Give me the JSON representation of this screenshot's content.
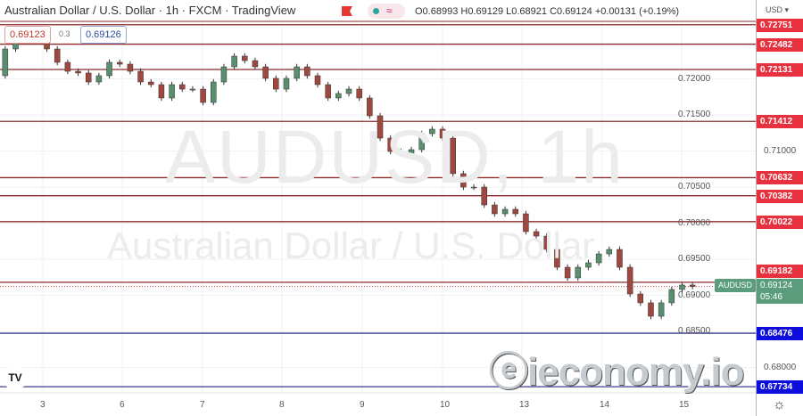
{
  "header": {
    "title": "Australian Dollar / U.S. Dollar · 1h · FXCM · TradingView",
    "ohlc": "O0.68993 H0.69129 L0.68921 C0.69124 +0.00131 (+0.19%)",
    "sell_price": "0.69123",
    "spread": "0.3",
    "buy_price": "0.69126",
    "flag_icon": "red-flag-icon",
    "status_icon": "market-open-dot"
  },
  "watermark": {
    "symbol": "AUDUSD, 1h",
    "name": "Australian Dollar / U.S. Dollar"
  },
  "axis": {
    "currency": "USD ▾"
  },
  "logo_text": "ieconomy.io",
  "current": {
    "symbol": "AUDUSD",
    "price": "0.69124",
    "countdown": "05:46"
  },
  "colors": {
    "up": "#26a69a",
    "down": "#ef5350",
    "candle_body_up": "#5a8f6e",
    "candle_body_down": "#a0473f",
    "resistance": "#8b2b2b",
    "support": "#1c1cd6",
    "label_red": "#e8313f",
    "label_blue": "#0d0dde"
  },
  "chart_data": {
    "type": "candlestick",
    "timeframe": "1h",
    "ylim": [
      0.6762,
      0.73
    ],
    "y_ticks": [
      "0.72000",
      "0.71500",
      "0.71000",
      "0.70500",
      "0.70000",
      "0.69500",
      "0.69000",
      "0.68500",
      "0.68000"
    ],
    "x_ticks": [
      "3",
      "6",
      "7",
      "8",
      "9",
      "10",
      "13",
      "14",
      "15"
    ],
    "closes": [
      0.72045,
      0.72415,
      0.726,
      0.72538,
      0.726,
      0.72415,
      0.7223,
      0.72106,
      0.72082,
      0.71958,
      0.72045,
      0.7223,
      0.72205,
      0.72106,
      0.71958,
      0.71921,
      0.71736,
      0.71921,
      0.71859,
      0.71859,
      0.71674,
      0.71958,
      0.72168,
      0.72316,
      0.72254,
      0.72168,
      0.72008,
      0.71859,
      0.72008,
      0.72168,
      0.72045,
      0.71921,
      0.71736,
      0.71798,
      0.71859,
      0.71736,
      0.71489,
      0.7118,
      0.70995,
      0.7097,
      0.7102,
      0.71242,
      0.71304,
      0.7118,
      0.70687,
      0.70501,
      0.70501,
      0.70254,
      0.70131,
      0.70193,
      0.70131,
      0.69884,
      0.69822,
      0.69637,
      0.6939,
      0.69242,
      0.6939,
      0.69452,
      0.69575,
      0.69637,
      0.6939,
      0.6902,
      0.68897,
      0.68711,
      0.68897,
      0.69082,
      0.69144,
      0.69124
    ],
    "levels": [
      {
        "price": "0.72751",
        "type": "resistance"
      },
      {
        "price": "0.72482",
        "type": "resistance"
      },
      {
        "price": "0.72131",
        "type": "resistance"
      },
      {
        "price": "0.71412",
        "type": "resistance"
      },
      {
        "price": "0.70632",
        "type": "resistance"
      },
      {
        "price": "0.70382",
        "type": "resistance"
      },
      {
        "price": "0.70022",
        "type": "resistance"
      },
      {
        "price": "0.69182",
        "type": "resistance"
      },
      {
        "price": "0.68476",
        "type": "support"
      },
      {
        "price": "0.67734",
        "type": "support"
      }
    ]
  }
}
